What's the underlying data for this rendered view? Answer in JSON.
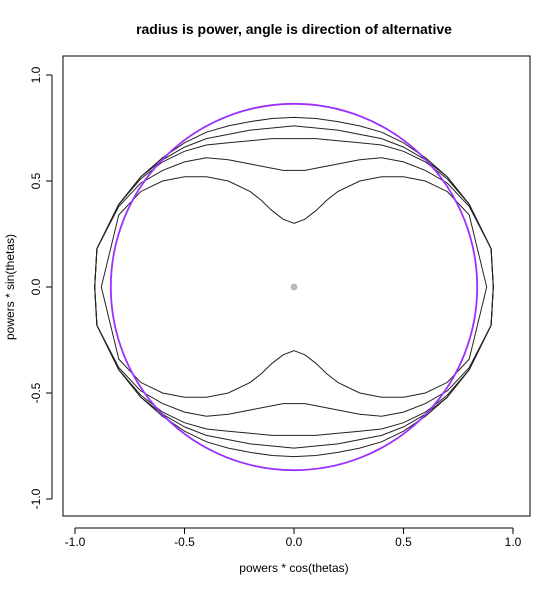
{
  "chart_data": {
    "type": "line",
    "title": "radius is power, angle is direction of alternative",
    "xlabel": "powers * cos(thetas)",
    "ylabel": "powers * sin(thetas)",
    "xlim": [
      -1.0,
      1.0
    ],
    "ylim": [
      -1.0,
      1.0
    ],
    "xticks": [
      -1.0,
      -0.5,
      0.0,
      0.5,
      1.0
    ],
    "yticks": [
      -1.0,
      -0.5,
      0.0,
      0.5,
      1.0
    ],
    "xtick_labels": [
      "-1.0",
      "-0.5",
      "0.0",
      "0.5",
      "1.0"
    ],
    "ytick_labels": [
      "-1.0",
      "-0.5",
      "0.0",
      "0.5",
      "1.0"
    ],
    "grid": false,
    "legend": "none",
    "reference_circle": {
      "radius": 0.85,
      "color": "#9b30ff"
    },
    "center_point": {
      "x": 0.0,
      "y": 0.0,
      "color": "#bbbbbb"
    },
    "curve_color": "#222222",
    "series": [
      {
        "top": {
          "x": [
            0.0,
            0.1,
            0.2,
            0.3,
            0.4,
            0.5,
            0.6,
            0.7,
            0.8,
            0.9,
            0.91
          ],
          "y": [
            0.8,
            0.795,
            0.78,
            0.76,
            0.73,
            0.68,
            0.61,
            0.52,
            0.39,
            0.18,
            0.0
          ]
        }
      },
      {
        "top": {
          "x": [
            0.0,
            0.1,
            0.2,
            0.3,
            0.4,
            0.5,
            0.6,
            0.7,
            0.8,
            0.9,
            0.91
          ],
          "y": [
            0.76,
            0.75,
            0.74,
            0.72,
            0.7,
            0.66,
            0.6,
            0.52,
            0.39,
            0.18,
            0.0
          ]
        }
      },
      {
        "top": {
          "x": [
            0.0,
            0.1,
            0.2,
            0.3,
            0.4,
            0.5,
            0.6,
            0.7,
            0.8,
            0.9,
            0.91
          ],
          "y": [
            0.7,
            0.7,
            0.69,
            0.68,
            0.67,
            0.64,
            0.59,
            0.51,
            0.39,
            0.18,
            0.0
          ]
        }
      },
      {
        "top": {
          "x": [
            0.0,
            0.05,
            0.1,
            0.2,
            0.3,
            0.4,
            0.5,
            0.6,
            0.7,
            0.8,
            0.9,
            0.91
          ],
          "y": [
            0.55,
            0.55,
            0.56,
            0.58,
            0.6,
            0.61,
            0.59,
            0.55,
            0.49,
            0.38,
            0.18,
            0.0
          ]
        }
      },
      {
        "top": {
          "x": [
            0.0,
            0.05,
            0.1,
            0.15,
            0.2,
            0.3,
            0.4,
            0.5,
            0.6,
            0.7,
            0.8,
            0.88
          ],
          "y": [
            0.3,
            0.32,
            0.36,
            0.41,
            0.45,
            0.5,
            0.52,
            0.52,
            0.5,
            0.45,
            0.34,
            0.0
          ]
        }
      }
    ]
  }
}
